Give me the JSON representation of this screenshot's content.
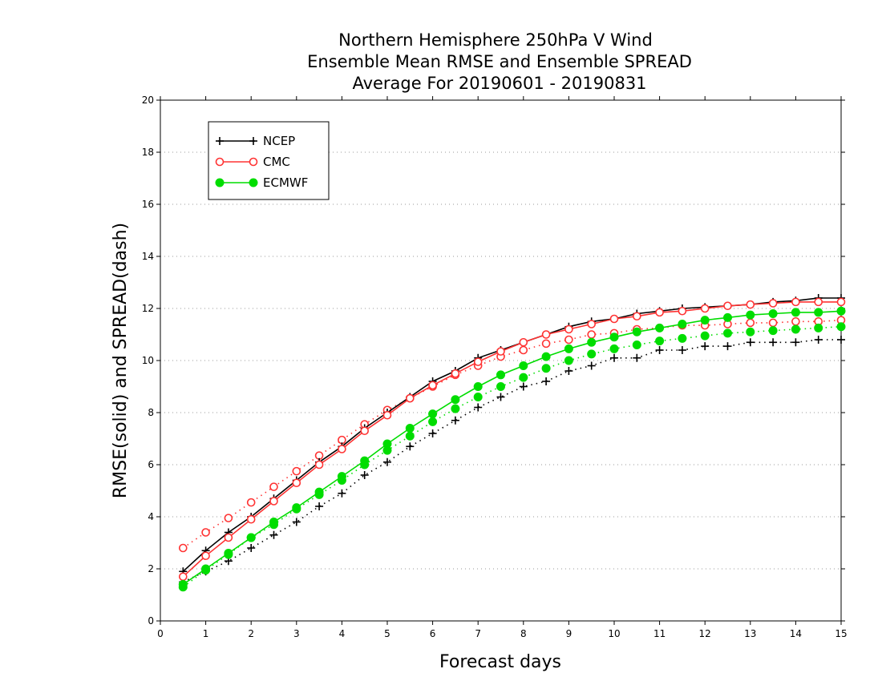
{
  "chart_data": {
    "type": "line",
    "title": [
      "Northern Hemisphere 250hPa V Wind",
      "Ensemble Mean RMSE and Ensemble SPREAD",
      "Average For 20190601 - 20190831"
    ],
    "xlabel": "Forecast days",
    "ylabel": "RMSE(solid) and SPREAD(dash)",
    "xlim": [
      0,
      15
    ],
    "ylim": [
      0,
      20
    ],
    "xticks": [
      "0",
      "1",
      "2",
      "3",
      "4",
      "5",
      "6",
      "7",
      "8",
      "9",
      "10",
      "11",
      "12",
      "13",
      "14",
      "15"
    ],
    "yticks": [
      "0",
      "2",
      "4",
      "6",
      "8",
      "10",
      "12",
      "14",
      "16",
      "18",
      "20"
    ],
    "grid": "horizontal dotted",
    "legend": {
      "placement": "top-left",
      "entries": [
        "NCEP",
        "CMC",
        "ECMWF"
      ]
    },
    "x": [
      0.5,
      1,
      1.5,
      2,
      2.5,
      3,
      3.5,
      4,
      4.5,
      5,
      5.5,
      6,
      6.5,
      7,
      7.5,
      8,
      8.5,
      9,
      9.5,
      10,
      10.5,
      11,
      11.5,
      12,
      12.5,
      13,
      13.5,
      14,
      14.5,
      15
    ],
    "series": [
      {
        "name": "NCEP",
        "metric": "RMSE",
        "style": "solid",
        "marker": "plus",
        "color": "#000000",
        "values": [
          1.9,
          2.7,
          3.4,
          4.0,
          4.7,
          5.4,
          6.1,
          6.7,
          7.4,
          8.0,
          8.6,
          9.2,
          9.6,
          10.1,
          10.4,
          10.7,
          11.0,
          11.3,
          11.5,
          11.6,
          11.8,
          11.9,
          12.0,
          12.05,
          12.1,
          12.15,
          12.25,
          12.3,
          12.4,
          12.4
        ]
      },
      {
        "name": "NCEP",
        "metric": "SPREAD",
        "style": "dotted",
        "marker": "plus",
        "color": "#000000",
        "values": [
          1.5,
          1.9,
          2.3,
          2.8,
          3.3,
          3.8,
          4.4,
          4.9,
          5.6,
          6.1,
          6.7,
          7.2,
          7.7,
          8.2,
          8.6,
          9.0,
          9.2,
          9.6,
          9.8,
          10.1,
          10.1,
          10.4,
          10.4,
          10.55,
          10.55,
          10.7,
          10.7,
          10.7,
          10.8,
          10.8
        ]
      },
      {
        "name": "CMC",
        "metric": "RMSE",
        "style": "solid",
        "marker": "open-circle",
        "color": "#ff3333",
        "values": [
          1.7,
          2.5,
          3.2,
          3.9,
          4.6,
          5.3,
          6.0,
          6.6,
          7.3,
          7.9,
          8.55,
          9.05,
          9.5,
          9.95,
          10.35,
          10.7,
          11.0,
          11.2,
          11.4,
          11.6,
          11.7,
          11.85,
          11.9,
          12.0,
          12.1,
          12.15,
          12.2,
          12.25,
          12.25,
          12.25
        ]
      },
      {
        "name": "CMC",
        "metric": "SPREAD",
        "style": "dotted",
        "marker": "open-circle",
        "color": "#ff3333",
        "values": [
          2.8,
          3.4,
          3.95,
          4.55,
          5.15,
          5.75,
          6.35,
          6.95,
          7.55,
          8.1,
          8.55,
          9.0,
          9.45,
          9.8,
          10.15,
          10.4,
          10.65,
          10.8,
          11.0,
          11.05,
          11.2,
          11.25,
          11.35,
          11.35,
          11.4,
          11.45,
          11.45,
          11.5,
          11.5,
          11.55
        ]
      },
      {
        "name": "ECMWF",
        "metric": "RMSE",
        "style": "solid",
        "marker": "filled-circle",
        "color": "#00dd00",
        "values": [
          1.4,
          2.0,
          2.6,
          3.2,
          3.8,
          4.35,
          4.95,
          5.55,
          6.15,
          6.8,
          7.4,
          7.95,
          8.5,
          9.0,
          9.45,
          9.8,
          10.15,
          10.45,
          10.7,
          10.9,
          11.1,
          11.25,
          11.4,
          11.55,
          11.65,
          11.75,
          11.8,
          11.85,
          11.85,
          11.9
        ]
      },
      {
        "name": "ECMWF",
        "metric": "SPREAD",
        "style": "dotted",
        "marker": "filled-circle",
        "color": "#00dd00",
        "values": [
          1.3,
          1.95,
          2.55,
          3.2,
          3.7,
          4.3,
          4.85,
          5.4,
          6.0,
          6.55,
          7.1,
          7.65,
          8.15,
          8.6,
          9.0,
          9.35,
          9.7,
          10.0,
          10.25,
          10.45,
          10.6,
          10.75,
          10.85,
          10.95,
          11.05,
          11.1,
          11.15,
          11.2,
          11.25,
          11.3
        ]
      }
    ]
  }
}
